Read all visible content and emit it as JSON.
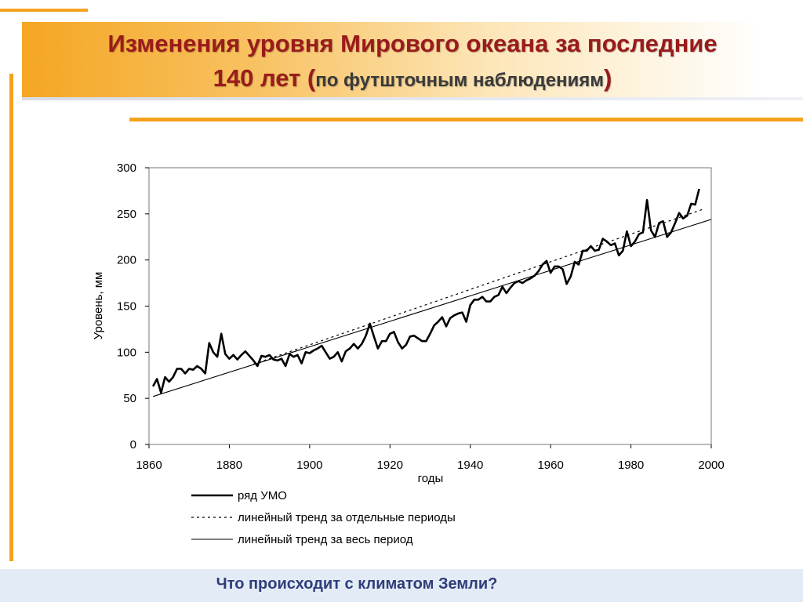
{
  "slide": {
    "title_line1": "Изменения уровня Мирового океана за последние",
    "title_line2_main": "140 лет ",
    "title_line2_paren_open": "(",
    "title_line2_sub": "по футшточным наблюдениям",
    "title_line2_paren_close": ")",
    "footer": "Что происходит с климатом Земли?"
  },
  "colors": {
    "accent": "#f4a21e",
    "title": "#9a1b1b",
    "footer_text": "#2e3d7a",
    "footer_bg": "#e3ebf6"
  },
  "chart_data": {
    "type": "line",
    "xlabel": "годы",
    "ylabel": "Уровень, мм",
    "xlim": [
      1860,
      2000
    ],
    "ylim": [
      0,
      300
    ],
    "x_ticks": [
      1860,
      1880,
      1900,
      1920,
      1940,
      1960,
      1980,
      2000
    ],
    "y_ticks": [
      0,
      50,
      100,
      150,
      200,
      250,
      300
    ],
    "series": [
      {
        "name": "ряд УМО",
        "style": "thick",
        "x": [
          1861,
          1862,
          1863,
          1864,
          1865,
          1866,
          1867,
          1868,
          1869,
          1870,
          1871,
          1872,
          1873,
          1874,
          1875,
          1876,
          1877,
          1878,
          1879,
          1880,
          1881,
          1882,
          1883,
          1884,
          1885,
          1886,
          1887,
          1888,
          1889,
          1890,
          1891,
          1892,
          1893,
          1894,
          1895,
          1896,
          1897,
          1898,
          1899,
          1900,
          1901,
          1902,
          1903,
          1904,
          1905,
          1906,
          1907,
          1908,
          1909,
          1910,
          1911,
          1912,
          1913,
          1914,
          1915,
          1916,
          1917,
          1918,
          1919,
          1920,
          1921,
          1922,
          1923,
          1924,
          1925,
          1926,
          1927,
          1928,
          1929,
          1930,
          1931,
          1932,
          1933,
          1934,
          1935,
          1936,
          1937,
          1938,
          1939,
          1940,
          1941,
          1942,
          1943,
          1944,
          1945,
          1946,
          1947,
          1948,
          1949,
          1950,
          1951,
          1952,
          1953,
          1954,
          1955,
          1956,
          1957,
          1958,
          1959,
          1960,
          1961,
          1962,
          1963,
          1964,
          1965,
          1966,
          1967,
          1968,
          1969,
          1970,
          1971,
          1972,
          1973,
          1974,
          1975,
          1976,
          1977,
          1978,
          1979,
          1980,
          1981,
          1982,
          1983,
          1984,
          1985,
          1986,
          1987,
          1988,
          1989,
          1990,
          1991,
          1992,
          1993,
          1994,
          1995,
          1996,
          1997
        ],
        "y": [
          63,
          71,
          56,
          73,
          68,
          73,
          82,
          82,
          77,
          82,
          81,
          85,
          82,
          77,
          110,
          100,
          95,
          120,
          98,
          93,
          97,
          92,
          97,
          101,
          96,
          91,
          85,
          96,
          95,
          97,
          92,
          91,
          93,
          85,
          98,
          95,
          97,
          88,
          100,
          99,
          102,
          104,
          107,
          100,
          93,
          95,
          100,
          90,
          101,
          104,
          109,
          104,
          109,
          118,
          131,
          117,
          104,
          112,
          112,
          120,
          122,
          111,
          104,
          108,
          117,
          118,
          115,
          112,
          112,
          120,
          129,
          133,
          138,
          128,
          137,
          140,
          142,
          143,
          133,
          151,
          157,
          157,
          160,
          155,
          155,
          160,
          162,
          171,
          164,
          170,
          175,
          177,
          175,
          178,
          180,
          183,
          188,
          195,
          199,
          186,
          193,
          193,
          190,
          174,
          182,
          198,
          195,
          210,
          210,
          215,
          210,
          211,
          223,
          220,
          216,
          218,
          205,
          210,
          231,
          215,
          220,
          228,
          230,
          265,
          232,
          225,
          240,
          242,
          225,
          230,
          240,
          251,
          245,
          248,
          261,
          260,
          277
        ]
      },
      {
        "name": "линейный тренд за отдельные периоды",
        "style": "dotted",
        "x": [
          1886,
          1998
        ],
        "y": [
          87,
          255
        ]
      },
      {
        "name": "линейный тренд за весь период",
        "style": "thin",
        "x": [
          1861,
          2000
        ],
        "y": [
          52,
          244
        ]
      }
    ],
    "legend": [
      "ряд УМО",
      "линейный тренд за отдельные периоды",
      "линейный тренд за весь период"
    ],
    "legend_position": "bottom"
  }
}
